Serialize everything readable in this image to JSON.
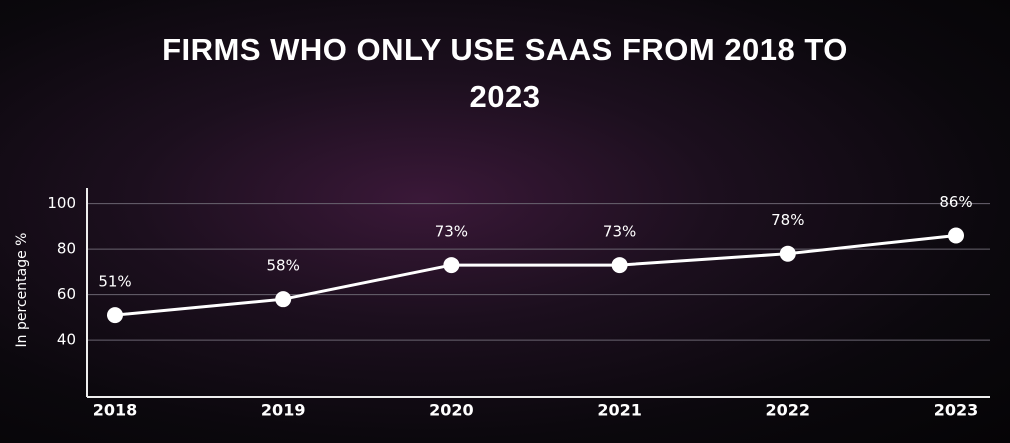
{
  "chart_data": {
    "type": "line",
    "title": "FIRMS WHO ONLY USE SAAS FROM 2018 TO 2023",
    "y_label": "In percentage %",
    "categories": [
      "2018",
      "2019",
      "2020",
      "2021",
      "2022",
      "2023"
    ],
    "values": [
      51,
      58,
      73,
      73,
      78,
      86
    ],
    "value_labels": [
      "51%",
      "58%",
      "73%",
      "73%",
      "78%",
      "86%"
    ],
    "color": "#ffffff",
    "ylim": [
      15,
      106
    ],
    "yticks": [
      40,
      60,
      80,
      100
    ],
    "grid": true
  }
}
